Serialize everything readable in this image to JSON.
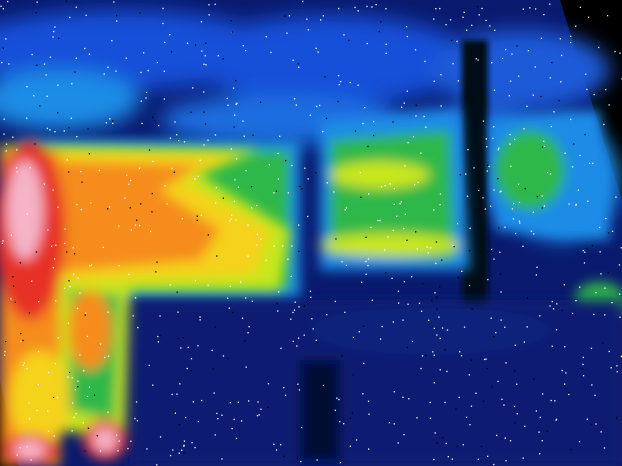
{
  "image": {
    "kind": "thermal-camera-frame",
    "palette": [
      "#0a1a6e",
      "#1450d8",
      "#1e8ce6",
      "#2fb84a",
      "#c8e61e",
      "#f5d21e",
      "#f58c1e",
      "#e63228",
      "#f5b4c8"
    ],
    "background_color": "#000000",
    "noise_color": "#ffffff"
  }
}
